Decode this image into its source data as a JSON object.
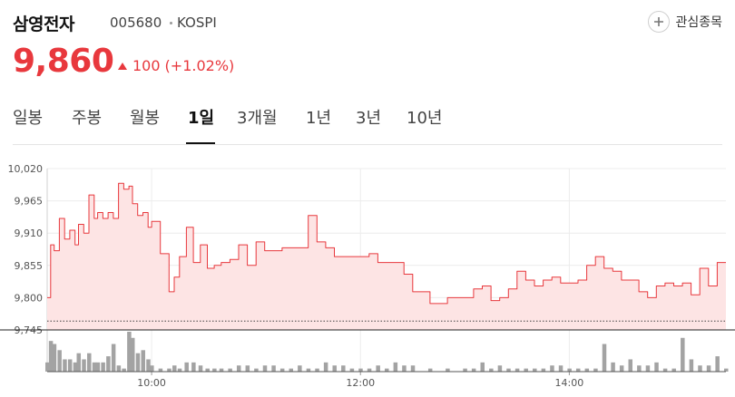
{
  "header": {
    "name": "삼영전자",
    "code": "005680",
    "market": "KOSPI",
    "favorite_label": "관심종목"
  },
  "price": {
    "current": "9,860",
    "change": "100",
    "change_pct": "(+1.02%)"
  },
  "colors": {
    "up": "#e8383d",
    "area_fill": "#fde4e4",
    "volume_bar": "#a3a3a3"
  },
  "tabs": [
    {
      "label": "일봉",
      "active": false
    },
    {
      "label": "주봉",
      "active": false
    },
    {
      "label": "월봉",
      "active": false
    },
    {
      "label": "1일",
      "active": true
    },
    {
      "label": "3개월",
      "active": false
    },
    {
      "label": "1년",
      "active": false
    },
    {
      "label": "3년",
      "active": false
    },
    {
      "label": "10년",
      "active": false
    }
  ],
  "chart_data": {
    "type": "area",
    "x_range": [
      "09:00",
      "15:30"
    ],
    "y_range": [
      9745,
      10020
    ],
    "y_ticks": [
      "10,020",
      "9,965",
      "9,910",
      "9,855",
      "9,800",
      "9,745"
    ],
    "x_ticks": [
      "10:00",
      "12:00",
      "14:00"
    ],
    "grid": true,
    "reference_price": 9760,
    "series": [
      {
        "x": [
          "09:00",
          "09:02",
          "09:04",
          "09:07",
          "09:10",
          "09:13",
          "09:16",
          "09:18",
          "09:21",
          "09:24",
          "09:27",
          "09:29",
          "09:32",
          "09:35",
          "09:38",
          "09:41",
          "09:44",
          "09:47",
          "09:49",
          "09:52",
          "09:55",
          "09:58",
          "10:00",
          "10:05",
          "10:10",
          "10:13",
          "10:16",
          "10:20",
          "10:24",
          "10:28",
          "10:32",
          "10:36",
          "10:40",
          "10:45",
          "10:50",
          "10:55",
          "11:00",
          "11:05",
          "11:10",
          "11:15",
          "11:20",
          "11:25",
          "11:30",
          "11:35",
          "11:40",
          "11:45",
          "11:50",
          "11:55",
          "12:00",
          "12:05",
          "12:10",
          "12:15",
          "12:20",
          "12:25",
          "12:30",
          "12:40",
          "12:50",
          "13:00",
          "13:05",
          "13:10",
          "13:15",
          "13:20",
          "13:25",
          "13:30",
          "13:35",
          "13:40",
          "13:45",
          "13:50",
          "13:55",
          "14:00",
          "14:05",
          "14:10",
          "14:15",
          "14:20",
          "14:25",
          "14:30",
          "14:35",
          "14:40",
          "14:45",
          "14:50",
          "14:55",
          "15:00",
          "15:05",
          "15:10",
          "15:15",
          "15:20",
          "15:25",
          "15:30"
        ],
        "values": [
          9800,
          9890,
          9880,
          9935,
          9900,
          9915,
          9890,
          9925,
          9910,
          9975,
          9935,
          9945,
          9935,
          9945,
          9935,
          9995,
          9985,
          9990,
          9960,
          9940,
          9945,
          9920,
          9930,
          9875,
          9810,
          9835,
          9870,
          9920,
          9860,
          9890,
          9850,
          9855,
          9860,
          9865,
          9890,
          9855,
          9895,
          9880,
          9880,
          9885,
          9885,
          9885,
          9940,
          9895,
          9885,
          9870,
          9870,
          9870,
          9870,
          9875,
          9860,
          9860,
          9860,
          9840,
          9810,
          9790,
          9800,
          9800,
          9815,
          9820,
          9795,
          9800,
          9815,
          9845,
          9830,
          9820,
          9830,
          9835,
          9825,
          9825,
          9830,
          9855,
          9870,
          9850,
          9845,
          9830,
          9830,
          9810,
          9800,
          9820,
          9825,
          9820,
          9825,
          9805,
          9850,
          9820,
          9860,
          9860
        ],
        "volume": [
          3,
          10,
          9,
          7,
          4,
          4,
          3,
          6,
          4,
          6,
          3,
          3,
          3,
          5,
          9,
          2,
          1,
          13,
          11,
          6,
          7,
          4,
          2,
          1,
          1,
          2,
          1,
          3,
          3,
          2,
          1,
          1,
          1,
          1,
          2,
          2,
          1,
          2,
          2,
          1,
          1,
          2,
          1,
          1,
          3,
          2,
          2,
          1,
          1,
          1,
          2,
          1,
          3,
          2,
          2,
          1,
          1,
          1,
          1,
          3,
          1,
          2,
          1,
          1,
          1,
          1,
          1,
          2,
          2,
          1,
          1,
          1,
          1,
          9,
          3,
          2,
          4,
          2,
          2,
          3,
          1,
          1,
          11,
          4,
          2,
          2,
          5,
          1
        ]
      }
    ]
  }
}
